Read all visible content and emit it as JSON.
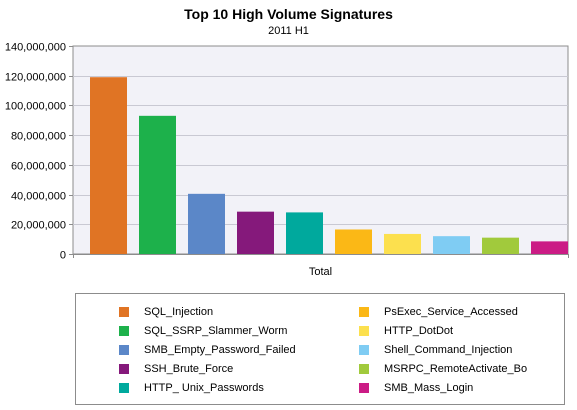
{
  "chart_data": {
    "type": "bar",
    "title": "Top 10 High Volume Signatures",
    "subtitle": "2011 H1",
    "xlabel": "",
    "ylabel": "",
    "x_tick_label": "Total",
    "ylim": [
      0,
      140000000
    ],
    "yticks": [
      0,
      20000000,
      40000000,
      60000000,
      80000000,
      100000000,
      120000000,
      140000000
    ],
    "ytick_labels": [
      "0",
      "20,000,000",
      "40,000,000",
      "60,000,000",
      "80,000,000",
      "100,000,000",
      "120,000,000",
      "140,000,000"
    ],
    "grid": true,
    "legend_position": "bottom",
    "series": [
      {
        "name": "SQL_Injection",
        "value": 119000000,
        "color": "#E07424"
      },
      {
        "name": "SQL_SSRP_Slammer_Worm",
        "value": 93000000,
        "color": "#1DB14B"
      },
      {
        "name": "SMB_Empty_Password_Failed",
        "value": 40500000,
        "color": "#5B87C8"
      },
      {
        "name": "SSH_Brute_Force",
        "value": 28500000,
        "color": "#85197B"
      },
      {
        "name": "HTTP_ Unix_Passwords",
        "value": 28000000,
        "color": "#00A99D"
      },
      {
        "name": "PsExec_Service_Accessed",
        "value": 16500000,
        "color": "#FBB816"
      },
      {
        "name": "HTTP_DotDot",
        "value": 13500000,
        "color": "#FCE04E"
      },
      {
        "name": "Shell_Command_Injection",
        "value": 12000000,
        "color": "#7FCCF3"
      },
      {
        "name": "MSRPC_RemoteActivate_Bo",
        "value": 11000000,
        "color": "#A1CA3C"
      },
      {
        "name": "SMB_Mass_Login",
        "value": 8500000,
        "color": "#CB1C85"
      }
    ]
  }
}
